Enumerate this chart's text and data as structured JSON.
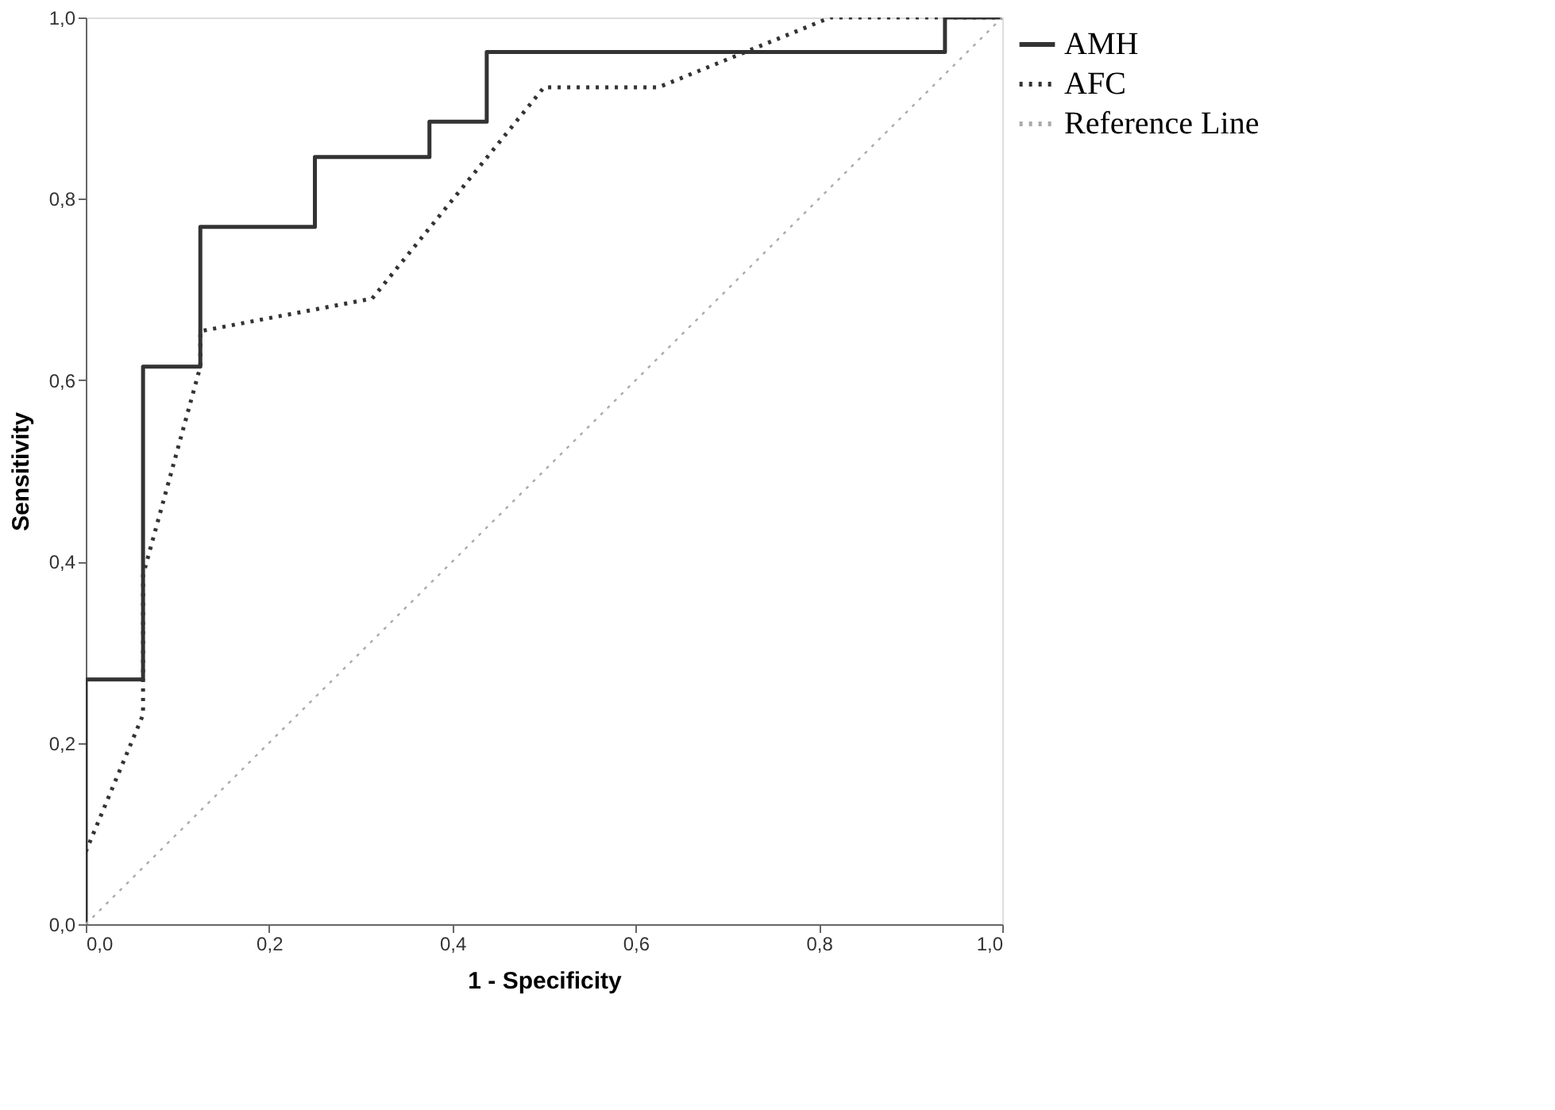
{
  "chart_data": {
    "type": "line",
    "xlabel": "1 - Specificity",
    "ylabel": "Sensitivity",
    "xlim": [
      0,
      1
    ],
    "ylim": [
      0,
      1
    ],
    "xticks": [
      {
        "value": 0,
        "label": "0,0"
      },
      {
        "value": 0.2,
        "label": "0,2"
      },
      {
        "value": 0.4,
        "label": "0,4"
      },
      {
        "value": 0.6,
        "label": "0,6"
      },
      {
        "value": 0.8,
        "label": "0,8"
      },
      {
        "value": 1,
        "label": "1,0"
      }
    ],
    "yticks": [
      {
        "value": 0,
        "label": "0,0"
      },
      {
        "value": 0.2,
        "label": "0,2"
      },
      {
        "value": 0.4,
        "label": "0,4"
      },
      {
        "value": 0.6,
        "label": "0,6"
      },
      {
        "value": 0.8,
        "label": "0,8"
      },
      {
        "value": 1,
        "label": "1,0"
      }
    ],
    "grid": false,
    "legend": "right",
    "series": [
      {
        "name": "AMH",
        "type": "step",
        "color": "#333333",
        "line_style": "solid",
        "x": [
          0,
          0,
          0.0625,
          0.125,
          0.25,
          0.375,
          0.4375,
          0.9375,
          1
        ],
        "values": [
          0,
          0.27,
          0.615,
          0.769,
          0.846,
          0.885,
          0.962,
          1,
          1
        ]
      },
      {
        "name": "AFC",
        "color": "#333333",
        "line_style": "dotted",
        "x": [
          0,
          0.0625,
          0.0625,
          0.125,
          0.125,
          0.3125,
          0.5,
          0.625,
          0.8125,
          1
        ],
        "values": [
          0.08,
          0.231,
          0.385,
          0.615,
          0.654,
          0.69,
          0.923,
          0.923,
          1,
          1
        ]
      },
      {
        "name": "Reference Line",
        "color": "#aaaaaa",
        "line_style": "dotted",
        "x": [
          0,
          1
        ],
        "values": [
          0,
          1
        ]
      }
    ]
  }
}
